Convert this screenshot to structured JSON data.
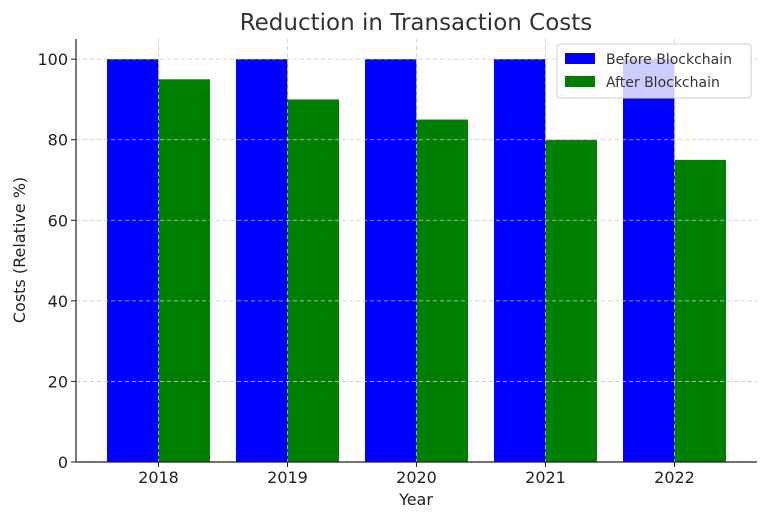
{
  "chart_data": {
    "type": "bar",
    "title": "Reduction in Transaction Costs",
    "xlabel": "Year",
    "ylabel": "Costs (Relative %)",
    "categories": [
      "2018",
      "2019",
      "2020",
      "2021",
      "2022"
    ],
    "series": [
      {
        "name": "Before Blockchain",
        "color": "#0000ff",
        "values": [
          100,
          100,
          100,
          100,
          100
        ]
      },
      {
        "name": "After Blockchain",
        "color": "#008000",
        "values": [
          95,
          90,
          85,
          80,
          75
        ]
      }
    ],
    "ylim": [
      0,
      105
    ],
    "yticks": [
      0,
      20,
      40,
      60,
      80,
      100
    ],
    "grid": true,
    "legend_position": "top-right"
  }
}
